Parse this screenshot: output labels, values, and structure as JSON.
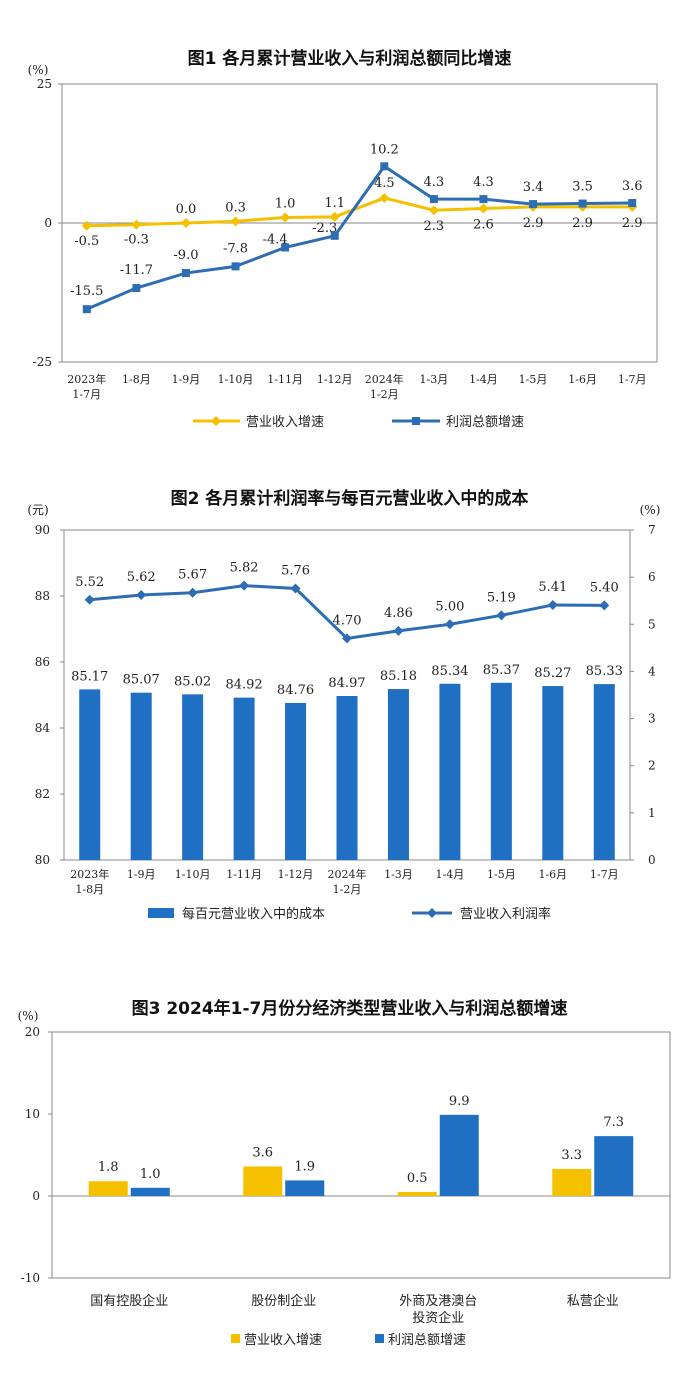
{
  "colors": {
    "yellow": "#F5C000",
    "blue": "#2E6DB4",
    "bar_blue": "#1F6FC2",
    "axis": "#8a8a8a"
  },
  "chart_data": [
    {
      "type": "line",
      "title": "图1  各月累计营业收入与利润总额同比增速",
      "unit": "(%)",
      "ylim": [
        -25,
        25
      ],
      "y_ticks": [
        "25",
        "0",
        "-25"
      ],
      "categories": [
        [
          "2023年",
          "1-7月"
        ],
        [
          "1-8月"
        ],
        [
          "1-9月"
        ],
        [
          "1-10月"
        ],
        [
          "1-11月"
        ],
        [
          "1-12月"
        ],
        [
          "2024年",
          "1-2月"
        ],
        [
          "1-3月"
        ],
        [
          "1-4月"
        ],
        [
          "1-5月"
        ],
        [
          "1-6月"
        ],
        [
          "1-7月"
        ]
      ],
      "series": [
        {
          "name": "营业收入增速",
          "color": "#F5C000",
          "marker": "diamond",
          "values": [
            -0.5,
            -0.3,
            0.0,
            0.3,
            1.0,
            1.1,
            4.5,
            2.3,
            2.6,
            2.9,
            2.9,
            2.9
          ],
          "labels": [
            "-0.5",
            "-0.3",
            "0.0",
            "0.3",
            "1.0",
            "1.1",
            "4.5",
            "2.3",
            "2.6",
            "2.9",
            "2.9",
            "2.9"
          ]
        },
        {
          "name": "利润总额增速",
          "color": "#2E6DB4",
          "marker": "square",
          "values": [
            -15.5,
            -11.7,
            -9.0,
            -7.8,
            -4.4,
            -2.3,
            10.2,
            4.3,
            4.3,
            3.4,
            3.5,
            3.6
          ],
          "labels": [
            "-15.5",
            "-11.7",
            "-9.0",
            "-7.8",
            "-4.4",
            "-2.3",
            "10.2",
            "4.3",
            "4.3",
            "3.4",
            "3.5",
            "3.6"
          ]
        }
      ]
    },
    {
      "type": "bar+line",
      "title": "图2  各月累计利润率与每百元营业收入中的成本",
      "unit_left": "(元)",
      "unit_right": "(%)",
      "ylim_left": [
        80,
        90
      ],
      "ylim_right": [
        0,
        7
      ],
      "y_ticks_left": [
        "80",
        "82",
        "84",
        "86",
        "88",
        "90"
      ],
      "y_ticks_right": [
        "0",
        "1",
        "2",
        "3",
        "4",
        "5",
        "6",
        "7"
      ],
      "categories": [
        [
          "2023年",
          "1-8月"
        ],
        [
          "1-9月"
        ],
        [
          "1-10月"
        ],
        [
          "1-11月"
        ],
        [
          "1-12月"
        ],
        [
          "2024年",
          "1-2月"
        ],
        [
          "1-3月"
        ],
        [
          "1-4月"
        ],
        [
          "1-5月"
        ],
        [
          "1-6月"
        ],
        [
          "1-7月"
        ]
      ],
      "series": [
        {
          "name": "每百元营业收入中的成本",
          "axis": "left",
          "color": "#1F6FC2",
          "kind": "bar",
          "values": [
            85.17,
            85.07,
            85.02,
            84.92,
            84.76,
            84.97,
            85.18,
            85.34,
            85.37,
            85.27,
            85.33
          ],
          "labels": [
            "85.17",
            "85.07",
            "85.02",
            "84.92",
            "84.76",
            "84.97",
            "85.18",
            "85.34",
            "85.37",
            "85.27",
            "85.33"
          ]
        },
        {
          "name": "营业收入利润率",
          "axis": "right",
          "color": "#2E6DB4",
          "kind": "line",
          "values": [
            5.52,
            5.62,
            5.67,
            5.82,
            5.76,
            4.7,
            4.86,
            5.0,
            5.19,
            5.41,
            5.4
          ],
          "labels": [
            "5.52",
            "5.62",
            "5.67",
            "5.82",
            "5.76",
            "4.70",
            "4.86",
            "5.00",
            "5.19",
            "5.41",
            "5.40"
          ]
        }
      ]
    },
    {
      "type": "bar",
      "title": "图3  2024年1-7月份分经济类型营业收入与利润总额增速",
      "unit": "(%)",
      "ylim": [
        -10,
        20
      ],
      "y_ticks": [
        "20",
        "10",
        "0",
        "-10"
      ],
      "categories": [
        [
          "国有控股企业"
        ],
        [
          "股份制企业"
        ],
        [
          "外商及港澳台",
          "投资企业"
        ],
        [
          "私营企业"
        ]
      ],
      "series": [
        {
          "name": "营业收入增速",
          "color": "#F5C000",
          "values": [
            1.8,
            3.6,
            0.5,
            3.3
          ],
          "labels": [
            "1.8",
            "3.6",
            "0.5",
            "3.3"
          ]
        },
        {
          "name": "利润总额增速",
          "color": "#1F6FC2",
          "values": [
            1.0,
            1.9,
            9.9,
            7.3
          ],
          "labels": [
            "1.0",
            "1.9",
            "9.9",
            "7.3"
          ]
        }
      ]
    }
  ]
}
